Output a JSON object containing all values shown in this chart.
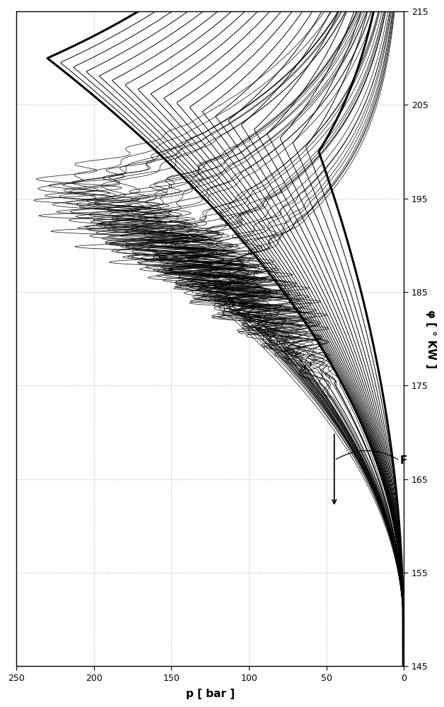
{
  "xlabel": "p [ bar ]",
  "ylabel": "φ [ ° KW ]",
  "xlim": [
    250,
    0
  ],
  "ylim": [
    145,
    215
  ],
  "xticks": [
    0,
    50,
    100,
    150,
    200,
    250
  ],
  "yticks": [
    145,
    155,
    165,
    175,
    185,
    195,
    205,
    215
  ],
  "grid_color": "#aaaaaa",
  "background_color": "#ffffff",
  "label_F": "F",
  "n_smooth": 22,
  "n_noisy": 40,
  "seed": 42
}
